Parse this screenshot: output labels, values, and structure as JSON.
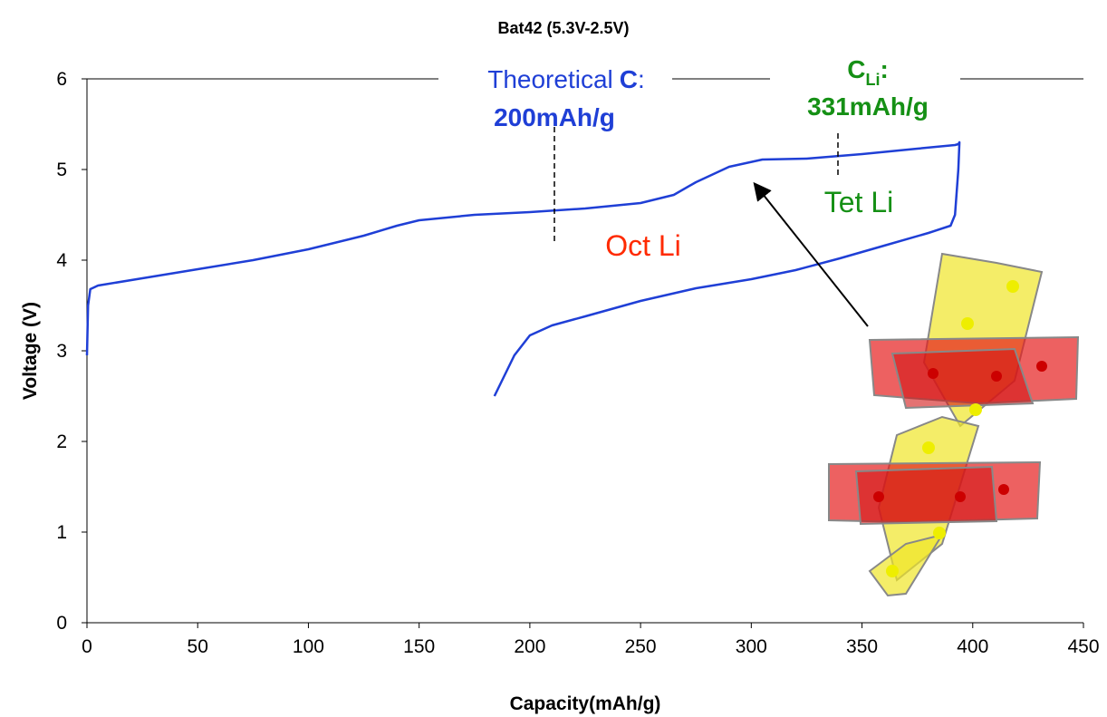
{
  "chart_data": {
    "type": "line",
    "title": "Bat42 (5.3V-2.5V)",
    "x_label": "Capacity(mAh/g)",
    "y_label": "Voltage (V)",
    "color": "#1f3fd6",
    "x": [
      0,
      0.5,
      1.5,
      5,
      25,
      50,
      75,
      100,
      125,
      140,
      150,
      175,
      200,
      225,
      250,
      265,
      275,
      290,
      305,
      325,
      350,
      375,
      392,
      393.5,
      394,
      393.5,
      392,
      390,
      380,
      360,
      340,
      320,
      300,
      275,
      250,
      225,
      210,
      200,
      193,
      184
    ],
    "values": [
      2.95,
      3.5,
      3.68,
      3.72,
      3.8,
      3.9,
      4.0,
      4.12,
      4.27,
      4.38,
      4.44,
      4.5,
      4.53,
      4.57,
      4.63,
      4.72,
      4.86,
      5.03,
      5.11,
      5.12,
      5.17,
      5.23,
      5.27,
      5.28,
      5.3,
      5.0,
      4.5,
      4.38,
      4.3,
      4.16,
      4.02,
      3.89,
      3.79,
      3.69,
      3.55,
      3.38,
      3.28,
      3.17,
      2.95,
      2.5
    ],
    "xlim": [
      0,
      450
    ],
    "ylim": [
      0,
      6
    ],
    "xticks": [
      0,
      50,
      100,
      150,
      200,
      250,
      300,
      350,
      400,
      450
    ],
    "yticks": [
      0,
      1,
      2,
      3,
      4,
      5,
      6
    ],
    "grid": false,
    "annotations": {
      "theoretical": [
        "Theoretical",
        "C",
        ":"
      ],
      "theoretical_value": "200mAh/g",
      "cli": [
        "C",
        "Li",
        ":"
      ],
      "cli_value": "331mAh/g",
      "oct": "Oct Li",
      "tet": "Tet Li"
    }
  }
}
